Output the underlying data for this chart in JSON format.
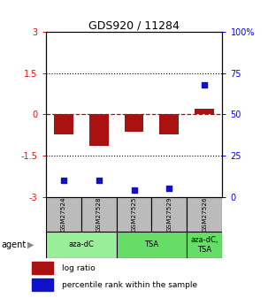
{
  "title": "GDS920 / 11284",
  "samples": [
    "GSM27524",
    "GSM27528",
    "GSM27525",
    "GSM27529",
    "GSM27526"
  ],
  "log_ratios": [
    -0.72,
    -1.15,
    -0.62,
    -0.72,
    0.22
  ],
  "percentile_ranks": [
    10,
    10,
    4,
    5,
    68
  ],
  "bar_color": "#aa1111",
  "dot_color": "#1111cc",
  "ylim_left": [
    -3,
    3
  ],
  "ylim_right": [
    0,
    100
  ],
  "yticks_left": [
    -3,
    -1.5,
    0,
    1.5,
    3
  ],
  "ytick_labels_left": [
    "-3",
    "-1.5",
    "0",
    "1.5",
    "3"
  ],
  "yticks_right": [
    0,
    25,
    50,
    75,
    100
  ],
  "ytick_labels_right": [
    "0",
    "25",
    "50",
    "75",
    "100%"
  ],
  "agent_groups": [
    {
      "label": "aza-dC",
      "start": 0,
      "end": 2,
      "color": "#99ee99"
    },
    {
      "label": "TSA",
      "start": 2,
      "end": 4,
      "color": "#66dd66"
    },
    {
      "label": "aza-dC,\nTSA",
      "start": 4,
      "end": 5,
      "color": "#66dd66"
    }
  ],
  "hline_color": "#cc0000",
  "box_color": "#bbbbbb",
  "legend_log_ratio": "log ratio",
  "legend_percentile": "percentile rank within the sample",
  "agent_label": "agent"
}
